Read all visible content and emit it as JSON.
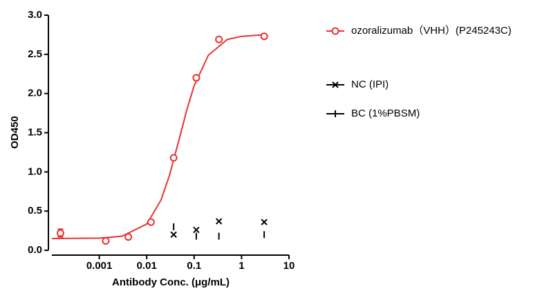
{
  "chart_data": {
    "type": "scatter",
    "x_label": "Antibody Conc. (μg/mL)",
    "y_label": "OD450",
    "x_log": true,
    "xlim": [
      0.0001,
      10
    ],
    "xticks": [
      0.001,
      0.01,
      0.1,
      1,
      10
    ],
    "ylim": [
      0,
      3
    ],
    "yticks": [
      {
        "value": 0,
        "label": "0.0"
      },
      {
        "value": 0.5,
        "label": "0.5"
      },
      {
        "value": 1,
        "label": "1.0"
      },
      {
        "value": 1.5,
        "label": "1.5"
      },
      {
        "value": 2,
        "label": "2.0"
      },
      {
        "value": 2.5,
        "label": "2.5"
      },
      {
        "value": 3,
        "label": "3.0"
      }
    ],
    "series": [
      {
        "name": "ozoralizumab（VHH）(P245243C)",
        "color": "#e8312f",
        "marker": "circle",
        "x": [
          0.000152,
          0.00137,
          0.0041,
          0.0123,
          0.037,
          0.111,
          0.333,
          3
        ],
        "values": [
          0.22,
          0.12,
          0.17,
          0.36,
          1.18,
          2.2,
          2.69,
          2.73
        ],
        "errors": [
          0.05,
          null,
          null,
          null,
          null,
          null,
          null,
          null
        ],
        "fit_x": [
          0.0001,
          0.001,
          0.003,
          0.01,
          0.02,
          0.03,
          0.05,
          0.07,
          0.1,
          0.2,
          0.5,
          1,
          3
        ],
        "fit_y": [
          0.15,
          0.155,
          0.179,
          0.334,
          0.64,
          0.95,
          1.45,
          1.79,
          2.1,
          2.49,
          2.69,
          2.73,
          2.75
        ]
      },
      {
        "name": "NC (IPI)",
        "color": "#000000",
        "marker": "x",
        "x": [
          0.037,
          0.111,
          0.333,
          3
        ],
        "values": [
          0.2,
          0.26,
          0.37,
          0.36
        ]
      },
      {
        "name": "BC (1%PBSM)",
        "color": "#000000",
        "marker": "bar",
        "x": [
          0.037,
          0.111,
          0.333,
          3
        ],
        "values": [
          0.3,
          0.18,
          0.18,
          0.2
        ]
      }
    ]
  }
}
